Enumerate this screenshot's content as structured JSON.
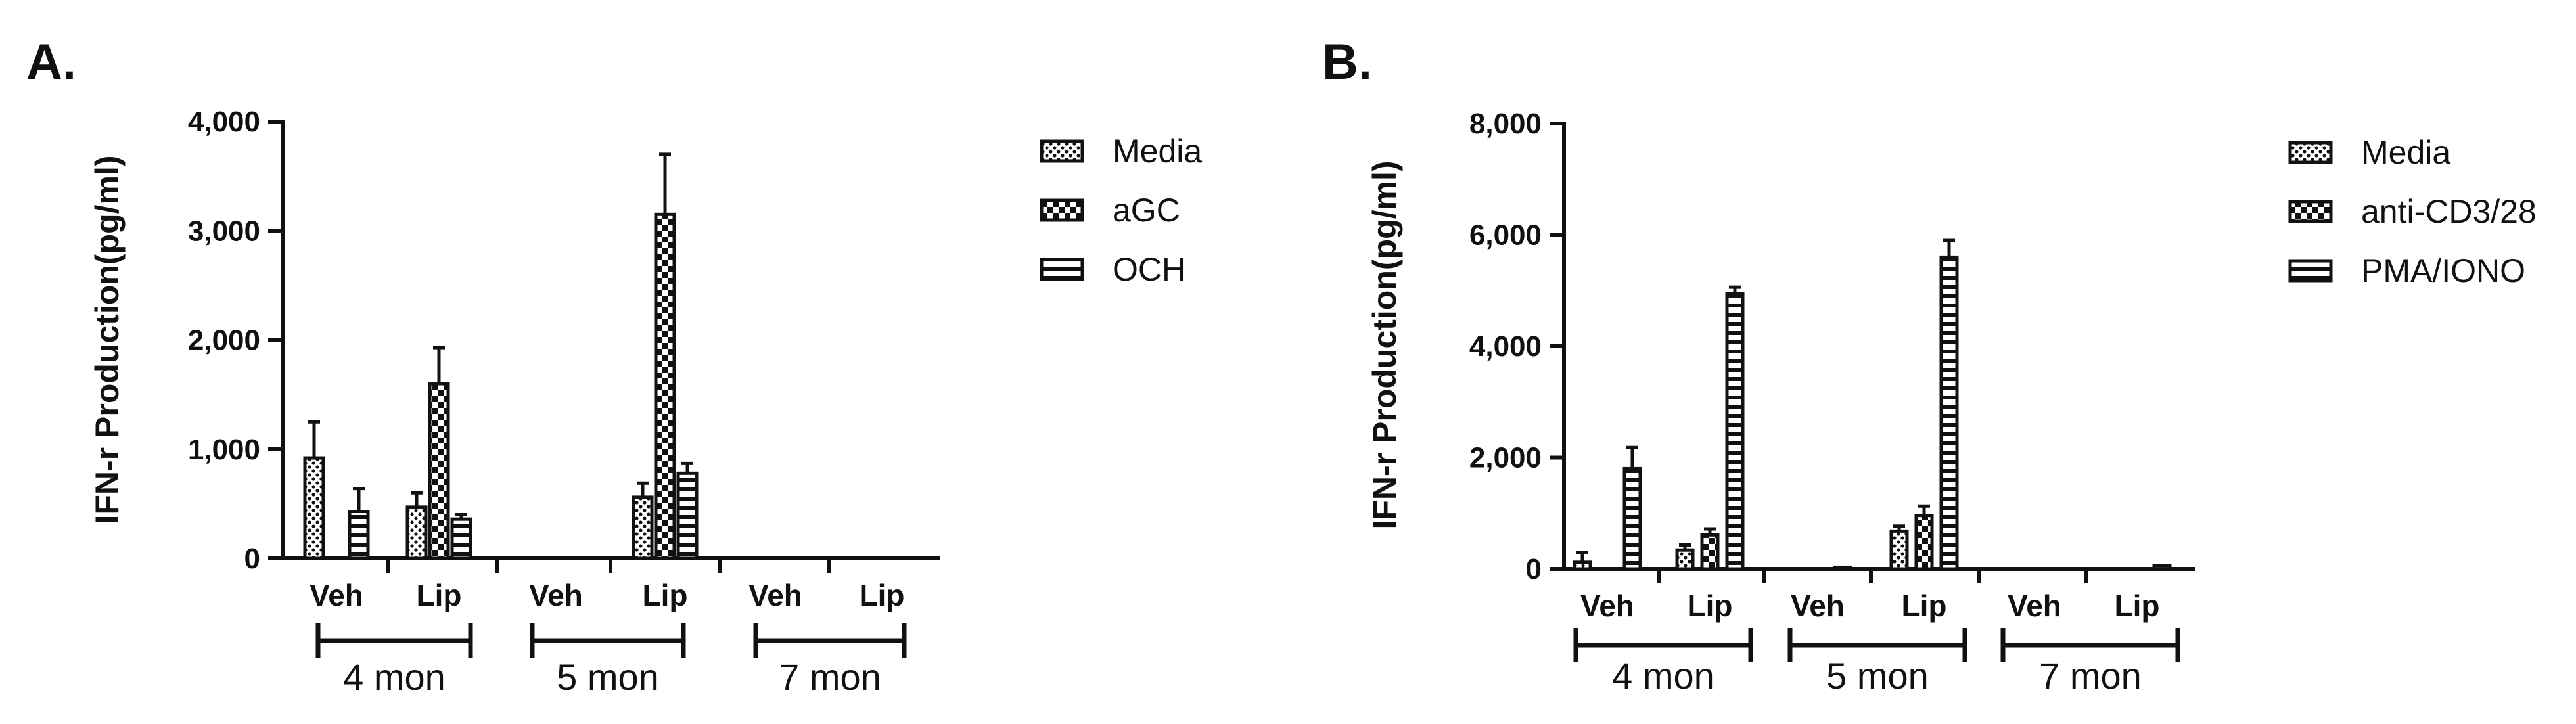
{
  "patterns": [
    "dots",
    "checker",
    "hstripes"
  ],
  "colors": {
    "ink": "#111111",
    "background": "#ffffff"
  },
  "chart_data": [
    {
      "type": "bar",
      "panel_label": "A.",
      "ylabel": "IFN-r Production(pg/ml)",
      "ylim": [
        0,
        4000
      ],
      "yticks": [
        0,
        1000,
        2000,
        3000,
        4000
      ],
      "ytick_labels": [
        "0",
        "1,000",
        "2,000",
        "3,000",
        "4,000"
      ],
      "categories": [
        "Veh",
        "Lip",
        "Veh",
        "Lip",
        "Veh",
        "Lip"
      ],
      "groups": [
        "4 mon",
        "5 mon",
        "7 mon"
      ],
      "series": [
        {
          "name": "Media",
          "values": [
            920,
            470,
            0,
            560,
            0,
            0
          ],
          "errors": [
            330,
            130,
            0,
            130,
            0,
            0
          ]
        },
        {
          "name": "aGC",
          "values": [
            0,
            1600,
            0,
            3150,
            0,
            0
          ],
          "errors": [
            0,
            330,
            0,
            550,
            0,
            0
          ]
        },
        {
          "name": "OCH",
          "values": [
            430,
            360,
            0,
            780,
            0,
            0
          ],
          "errors": [
            210,
            40,
            0,
            90,
            0,
            0
          ]
        }
      ],
      "grid": false,
      "legend": "right"
    },
    {
      "type": "bar",
      "panel_label": "B.",
      "ylabel": "IFN-r Production(pg/ml)",
      "ylim": [
        0,
        8000
      ],
      "yticks": [
        0,
        2000,
        4000,
        6000,
        8000
      ],
      "ytick_labels": [
        "0",
        "2,000",
        "4,000",
        "6,000",
        "8,000"
      ],
      "categories": [
        "Veh",
        "Lip",
        "Veh",
        "Lip",
        "Veh",
        "Lip"
      ],
      "groups": [
        "4 mon",
        "5 mon",
        "7 mon"
      ],
      "series": [
        {
          "name": "Media",
          "values": [
            120,
            340,
            0,
            680,
            0,
            0
          ],
          "errors": [
            170,
            90,
            0,
            90,
            0,
            0
          ]
        },
        {
          "name": "anti-CD3/28",
          "values": [
            0,
            610,
            0,
            960,
            0,
            0
          ],
          "errors": [
            0,
            110,
            0,
            170,
            0,
            0
          ]
        },
        {
          "name": "PMA/IONO",
          "values": [
            1800,
            4950,
            30,
            5600,
            0,
            60
          ],
          "errors": [
            380,
            110,
            0,
            300,
            0,
            0
          ]
        }
      ],
      "grid": false,
      "legend": "right"
    }
  ]
}
